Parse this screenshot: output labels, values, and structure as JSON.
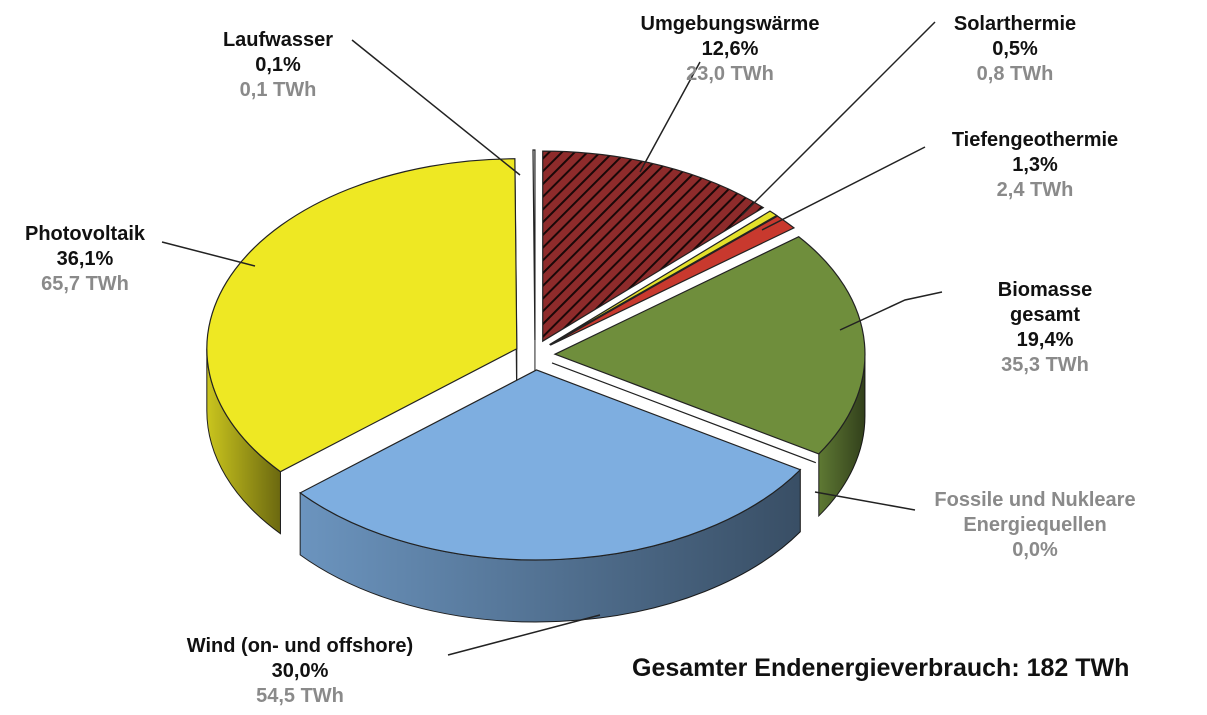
{
  "chart_data": {
    "type": "pie",
    "labels": [
      "Umgebungswärme",
      "Solarthermie",
      "Tiefengeothermie",
      "Biomasse gesamt",
      "Fossile und Nukleare Energiequellen",
      "Wind (on- und offshore)",
      "Photovoltaik",
      "Laufwasser"
    ],
    "values": [
      12.6,
      0.5,
      1.3,
      19.4,
      0.0,
      30.0,
      36.1,
      0.1
    ],
    "value_labels": [
      "12,6%",
      "0,5%",
      "1,3%",
      "19,4%",
      "0,0%",
      "30,0%",
      "36,1%",
      "0,1%"
    ],
    "twh": [
      23.0,
      0.8,
      2.4,
      35.3,
      null,
      54.5,
      65.7,
      0.1
    ],
    "twh_labels": [
      "23,0 TWh",
      "0,8 TWh",
      "2,4 TWh",
      "35,3 TWh",
      null,
      "54,5 TWh",
      "65,7 TWh",
      "0,1 TWh"
    ],
    "colors": [
      "#8e2b2b",
      "#e4e02a",
      "#c8392e",
      "#6f8e3c",
      "#999999",
      "#7eaee0",
      "#eee823",
      "#ffffff"
    ],
    "hatch": [
      true,
      false,
      false,
      false,
      false,
      false,
      false,
      false
    ],
    "annotation": "Gesamter Endenergieverbrauch: 182 TWh"
  }
}
